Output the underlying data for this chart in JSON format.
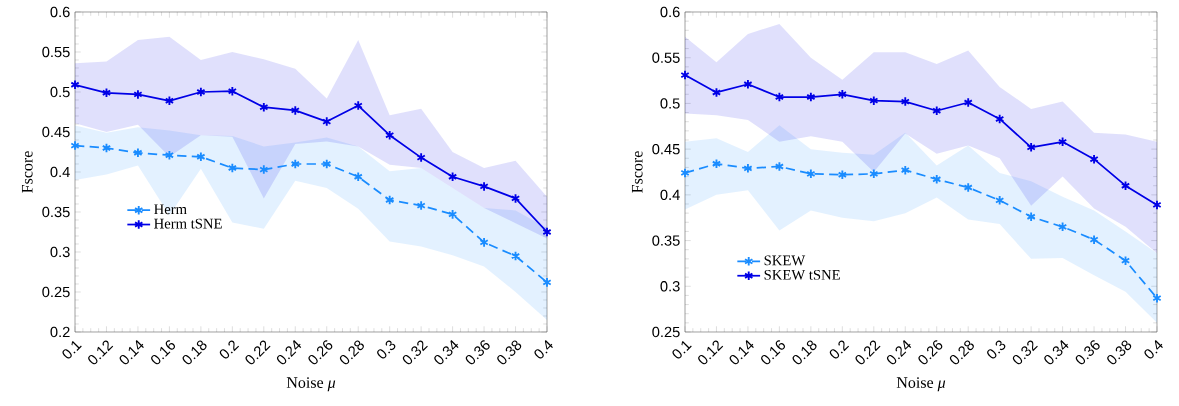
{
  "chart_data": [
    {
      "type": "line",
      "xlabel": "Noise *μ*",
      "ylabel": "Fscore",
      "x": [
        0.1,
        0.12,
        0.14,
        0.16,
        0.18,
        0.2,
        0.22,
        0.24,
        0.26,
        0.28,
        0.3,
        0.32,
        0.34,
        0.36,
        0.38,
        0.4
      ],
      "series": [
        {
          "name": "Herm",
          "color": "#1a8cff",
          "line_style": "dashed",
          "values": [
            0.433,
            0.43,
            0.424,
            0.421,
            0.419,
            0.405,
            0.403,
            0.41,
            0.41,
            0.394,
            0.365,
            0.358,
            0.347,
            0.312,
            0.295,
            0.262
          ],
          "lower": [
            0.39,
            0.397,
            0.408,
            0.346,
            0.404,
            0.337,
            0.329,
            0.389,
            0.38,
            0.354,
            0.313,
            0.307,
            0.296,
            0.282,
            0.25,
            0.215
          ],
          "upper": [
            0.458,
            0.449,
            0.456,
            0.452,
            0.446,
            0.445,
            0.432,
            0.437,
            0.443,
            0.432,
            0.401,
            0.405,
            0.38,
            0.355,
            0.352,
            0.33
          ]
        },
        {
          "name": "Herm tSNE",
          "color": "#0000e6",
          "line_style": "solid",
          "values": [
            0.509,
            0.499,
            0.497,
            0.489,
            0.5,
            0.501,
            0.481,
            0.477,
            0.463,
            0.483,
            0.446,
            0.418,
            0.394,
            0.382,
            0.367,
            0.325
          ],
          "lower": [
            0.461,
            0.45,
            0.459,
            0.419,
            0.446,
            0.444,
            0.367,
            0.435,
            0.438,
            0.432,
            0.409,
            0.405,
            0.38,
            0.355,
            0.336,
            0.317
          ],
          "upper": [
            0.536,
            0.538,
            0.565,
            0.569,
            0.54,
            0.55,
            0.541,
            0.529,
            0.492,
            0.565,
            0.471,
            0.479,
            0.425,
            0.405,
            0.414,
            0.369
          ]
        }
      ],
      "xlim": [
        0.1,
        0.4
      ],
      "ylim": [
        0.2,
        0.6
      ],
      "xticks": [
        0.1,
        0.12,
        0.14,
        0.16,
        0.18,
        0.2,
        0.22,
        0.24,
        0.26,
        0.28,
        0.3,
        0.32,
        0.34,
        0.36,
        0.38,
        0.4
      ],
      "yticks": [
        0.2,
        0.25,
        0.3,
        0.35,
        0.4,
        0.45,
        0.5,
        0.55,
        0.6
      ],
      "marker": "cross",
      "legend": "left",
      "grid": false
    },
    {
      "type": "line",
      "xlabel": "Noise *μ*",
      "ylabel": "Fscore",
      "x": [
        0.1,
        0.12,
        0.14,
        0.16,
        0.18,
        0.2,
        0.22,
        0.24,
        0.26,
        0.28,
        0.3,
        0.32,
        0.34,
        0.36,
        0.38,
        0.4
      ],
      "series": [
        {
          "name": "SKEW",
          "color": "#1a8cff",
          "line_style": "dashed",
          "values": [
            0.424,
            0.434,
            0.429,
            0.431,
            0.423,
            0.422,
            0.423,
            0.427,
            0.417,
            0.408,
            0.394,
            0.376,
            0.365,
            0.351,
            0.328,
            0.287
          ],
          "lower": [
            0.384,
            0.4,
            0.405,
            0.361,
            0.383,
            0.375,
            0.371,
            0.38,
            0.397,
            0.373,
            0.368,
            0.33,
            0.331,
            0.312,
            0.294,
            0.26
          ],
          "upper": [
            0.458,
            0.462,
            0.447,
            0.476,
            0.45,
            0.446,
            0.444,
            0.468,
            0.432,
            0.454,
            0.424,
            0.415,
            0.398,
            0.383,
            0.36,
            0.336
          ]
        },
        {
          "name": "SKEW tSNE",
          "color": "#0000e6",
          "line_style": "solid",
          "values": [
            0.531,
            0.512,
            0.521,
            0.507,
            0.507,
            0.51,
            0.503,
            0.502,
            0.492,
            0.501,
            0.483,
            0.452,
            0.458,
            0.439,
            0.41,
            0.389
          ],
          "lower": [
            0.489,
            0.487,
            0.482,
            0.458,
            0.464,
            0.458,
            0.425,
            0.467,
            0.445,
            0.454,
            0.44,
            0.388,
            0.42,
            0.385,
            0.365,
            0.336
          ],
          "upper": [
            0.573,
            0.545,
            0.576,
            0.587,
            0.55,
            0.526,
            0.556,
            0.556,
            0.543,
            0.558,
            0.518,
            0.494,
            0.502,
            0.468,
            0.466,
            0.458
          ]
        }
      ],
      "xlim": [
        0.1,
        0.4
      ],
      "ylim": [
        0.25,
        0.6
      ],
      "xticks": [
        0.1,
        0.12,
        0.14,
        0.16,
        0.18,
        0.2,
        0.22,
        0.24,
        0.26,
        0.28,
        0.3,
        0.32,
        0.34,
        0.36,
        0.38,
        0.4
      ],
      "yticks": [
        0.25,
        0.3,
        0.35,
        0.4,
        0.45,
        0.5,
        0.55,
        0.6
      ],
      "marker": "cross",
      "legend": "bottom left",
      "grid": false
    }
  ]
}
